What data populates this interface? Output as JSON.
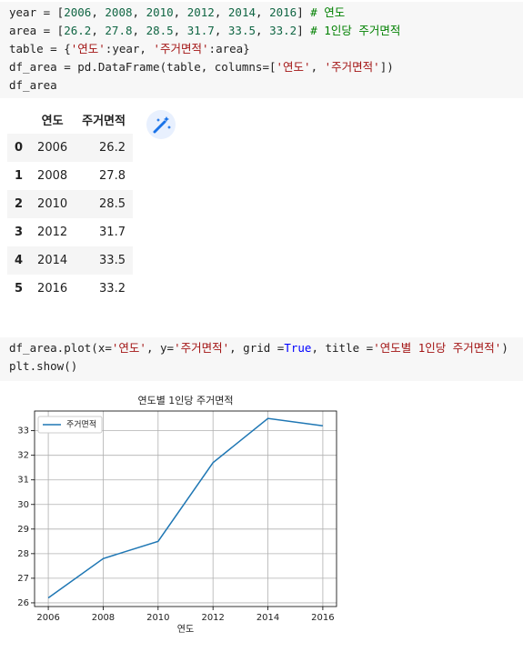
{
  "cells": [
    {
      "lines": [
        [
          [
            "year = [",
            ""
          ],
          [
            "2006",
            "n"
          ],
          [
            ", ",
            ""
          ],
          [
            "2008",
            "n"
          ],
          [
            ", ",
            ""
          ],
          [
            "2010",
            "n"
          ],
          [
            ", ",
            ""
          ],
          [
            "2012",
            "n"
          ],
          [
            ", ",
            ""
          ],
          [
            "2014",
            "n"
          ],
          [
            ", ",
            ""
          ],
          [
            "2016",
            "n"
          ],
          [
            "] ",
            ""
          ],
          [
            "# 연도",
            "c"
          ]
        ],
        [
          [
            "area = [",
            ""
          ],
          [
            "26.2",
            "n"
          ],
          [
            ", ",
            ""
          ],
          [
            "27.8",
            "n"
          ],
          [
            ", ",
            ""
          ],
          [
            "28.5",
            "n"
          ],
          [
            ", ",
            ""
          ],
          [
            "31.7",
            "n"
          ],
          [
            ", ",
            ""
          ],
          [
            "33.5",
            "n"
          ],
          [
            ", ",
            ""
          ],
          [
            "33.2",
            "n"
          ],
          [
            "] ",
            ""
          ],
          [
            "# 1인당 주거면적",
            "c"
          ]
        ],
        [
          [
            "table = {",
            ""
          ],
          [
            "'연도'",
            "s"
          ],
          [
            ":year, ",
            ""
          ],
          [
            "'주거면적'",
            "s"
          ],
          [
            ":area}",
            ""
          ]
        ],
        [
          [
            "df_area = pd.DataFrame(table, columns=[",
            ""
          ],
          [
            "'연도'",
            "s"
          ],
          [
            ", ",
            ""
          ],
          [
            "'주거면적'",
            "s"
          ],
          [
            "])",
            ""
          ]
        ],
        [
          [
            "df_area",
            ""
          ]
        ]
      ]
    },
    {
      "lines": [
        [
          [
            "df_area.plot(x=",
            ""
          ],
          [
            "'연도'",
            "s"
          ],
          [
            ", y=",
            ""
          ],
          [
            "'주거면적'",
            "s"
          ],
          [
            ", grid =",
            ""
          ],
          [
            "True",
            "k"
          ],
          [
            ", title =",
            ""
          ],
          [
            "'연도별 1인당 주거면적'",
            "s"
          ],
          [
            ")",
            ""
          ]
        ],
        [
          [
            "plt.show()",
            ""
          ]
        ]
      ]
    }
  ],
  "token_colors": {
    "n": "#116644",
    "s": "#a31515",
    "c": "#008000",
    "k": "#0000ff"
  },
  "table": {
    "columns": [
      "연도",
      "주거면적"
    ],
    "index": [
      0,
      1,
      2,
      3,
      4,
      5
    ],
    "rows": [
      [
        2006,
        26.2
      ],
      [
        2008,
        27.8
      ],
      [
        2010,
        28.5
      ],
      [
        2012,
        31.7
      ],
      [
        2014,
        33.5
      ],
      [
        2016,
        33.2
      ]
    ]
  },
  "chart_data": {
    "type": "line",
    "title": "연도별 1인당 주거면적",
    "xlabel": "연도",
    "x": [
      2006,
      2008,
      2010,
      2012,
      2014,
      2016
    ],
    "series": [
      {
        "name": "주거면적",
        "color": "#1f77b4",
        "values": [
          26.2,
          27.8,
          28.5,
          31.7,
          33.5,
          33.2
        ]
      }
    ],
    "xlim": [
      2005.5,
      2016.5
    ],
    "xticks": [
      2006,
      2008,
      2010,
      2012,
      2014,
      2016
    ],
    "ylim": [
      25.85,
      33.8
    ],
    "yticks": [
      26,
      27,
      28,
      29,
      30,
      31,
      32,
      33
    ],
    "grid": true,
    "legend": "upper left"
  }
}
